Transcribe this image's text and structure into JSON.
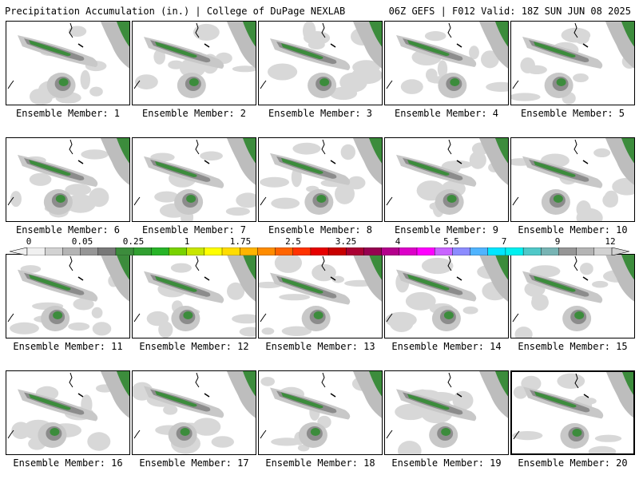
{
  "header": {
    "left_title": "Precipitation Accumulation (in.) | College of DuPage NEXLAB",
    "right_title": "06Z GEFS | F012 Valid: 18Z SUN JUN 08 2025"
  },
  "members": [
    {
      "label": "Ensemble Member: 1"
    },
    {
      "label": "Ensemble Member: 2"
    },
    {
      "label": "Ensemble Member: 3"
    },
    {
      "label": "Ensemble Member: 4"
    },
    {
      "label": "Ensemble Member: 5"
    },
    {
      "label": "Ensemble Member: 6"
    },
    {
      "label": "Ensemble Member: 7"
    },
    {
      "label": "Ensemble Member: 8"
    },
    {
      "label": "Ensemble Member: 9"
    },
    {
      "label": "Ensemble Member: 10"
    },
    {
      "label": "Ensemble Member: 11"
    },
    {
      "label": "Ensemble Member: 12"
    },
    {
      "label": "Ensemble Member: 13"
    },
    {
      "label": "Ensemble Member: 14"
    },
    {
      "label": "Ensemble Member: 15"
    },
    {
      "label": "Ensemble Member: 16"
    },
    {
      "label": "Ensemble Member: 17"
    },
    {
      "label": "Ensemble Member: 18"
    },
    {
      "label": "Ensemble Member: 19"
    },
    {
      "label": "Ensemble Member: 20"
    }
  ],
  "legend": {
    "tick_labels": [
      "0",
      "0.05",
      "0.25",
      "1",
      "1.75",
      "2.5",
      "3.25",
      "4",
      "5.5",
      "7",
      "9",
      "12"
    ],
    "colors": [
      "#f0f0f0",
      "#d2d2d2",
      "#b4b4b4",
      "#969696",
      "#787878",
      "#3c8c3c",
      "#32a032",
      "#28b428",
      "#78d200",
      "#c8e600",
      "#ffff00",
      "#ffdc00",
      "#ffb400",
      "#ff8c00",
      "#ff6400",
      "#ff3200",
      "#e60000",
      "#c80000",
      "#aa0032",
      "#960050",
      "#b4008c",
      "#dc00c8",
      "#ff00ff",
      "#c864ff",
      "#8c8cff",
      "#50b4ff",
      "#00e6ff",
      "#00f0f0",
      "#50c8c8",
      "#78b4b4",
      "#969696",
      "#b4b4b4",
      "#d2d2d2"
    ]
  }
}
